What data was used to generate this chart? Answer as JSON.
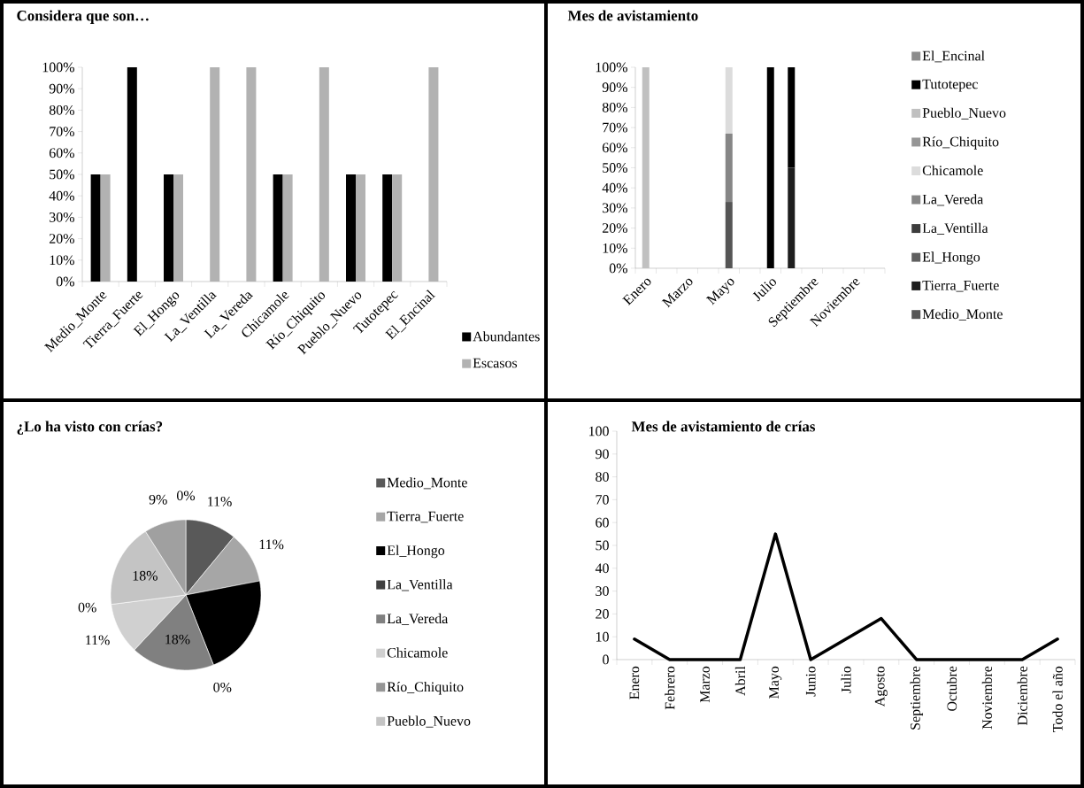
{
  "chart_data": [
    {
      "type": "bar",
      "title": "Considera que son…",
      "categories": [
        "Medio_Monte",
        "Tierra_Fuerte",
        "El_Hongo",
        "La_Ventilla",
        "La_Vereda",
        "Chicamole",
        "Río_Chiquito",
        "Pueblo_Nuevo",
        "Tutotepec",
        "El_Encinal"
      ],
      "series": [
        {
          "name": "Abundantes",
          "color": "#000000",
          "values": [
            50,
            100,
            50,
            0,
            0,
            50,
            0,
            50,
            50,
            0
          ]
        },
        {
          "name": "Escasos",
          "color": "#b2b2b2",
          "values": [
            50,
            0,
            50,
            100,
            100,
            50,
            100,
            50,
            50,
            100
          ]
        }
      ],
      "ylim": [
        0,
        100
      ],
      "yticks": [
        {
          "value": 0,
          "label": "0%"
        },
        {
          "value": 10,
          "label": "10%"
        },
        {
          "value": 20,
          "label": "20%"
        },
        {
          "value": 30,
          "label": "30%"
        },
        {
          "value": 40,
          "label": "40%"
        },
        {
          "value": 50,
          "label": "50%"
        },
        {
          "value": 60,
          "label": "60%"
        },
        {
          "value": 70,
          "label": "70%"
        },
        {
          "value": 80,
          "label": "80%"
        },
        {
          "value": 90,
          "label": "90%"
        },
        {
          "value": 100,
          "label": "100%"
        }
      ],
      "legend": "bottom right"
    },
    {
      "type": "bar",
      "title": "Mes de avistamiento",
      "stacked": true,
      "categories": [
        "Enero",
        null,
        "Marzo",
        null,
        "Mayo",
        null,
        "Julio",
        null,
        "Septiembre",
        null,
        "Noviembre",
        null
      ],
      "series": [
        {
          "name": "Medio_Monte",
          "color": "#555555",
          "values": [
            0,
            0,
            0,
            0,
            33,
            0,
            0,
            0,
            0,
            0,
            0,
            0
          ]
        },
        {
          "name": "Tierra_Fuerte",
          "color": "#1e1e1e",
          "values": [
            0,
            0,
            0,
            0,
            0,
            0,
            0,
            50,
            0,
            0,
            0,
            0
          ]
        },
        {
          "name": "El_Hongo",
          "color": "#5f5f5f",
          "values": [
            0,
            0,
            0,
            0,
            0,
            0,
            0,
            0,
            0,
            0,
            0,
            0
          ]
        },
        {
          "name": "La_Ventilla",
          "color": "#3c3c3c",
          "values": [
            0,
            0,
            0,
            0,
            0,
            0,
            0,
            0,
            0,
            0,
            0,
            0
          ]
        },
        {
          "name": "La_Vereda",
          "color": "#868686",
          "values": [
            0,
            0,
            0,
            0,
            34,
            0,
            0,
            0,
            0,
            0,
            0,
            0
          ]
        },
        {
          "name": "Chicamole",
          "color": "#dcdcdc",
          "values": [
            0,
            0,
            0,
            0,
            33,
            0,
            0,
            0,
            0,
            0,
            0,
            0
          ]
        },
        {
          "name": "Río_Chiquito",
          "color": "#969696",
          "values": [
            0,
            0,
            0,
            0,
            0,
            0,
            0,
            0,
            0,
            0,
            0,
            0
          ]
        },
        {
          "name": "Pueblo_Nuevo",
          "color": "#c0c0c0",
          "values": [
            100,
            0,
            0,
            0,
            0,
            0,
            0,
            0,
            0,
            0,
            0,
            0
          ]
        },
        {
          "name": "Tutotepec",
          "color": "#000000",
          "values": [
            0,
            0,
            0,
            0,
            0,
            0,
            100,
            50,
            0,
            0,
            0,
            0
          ]
        },
        {
          "name": "El_Encinal",
          "color": "#8c8c8c",
          "values": [
            0,
            0,
            0,
            0,
            0,
            0,
            0,
            0,
            0,
            0,
            0,
            0
          ]
        }
      ],
      "ylim": [
        0,
        100
      ],
      "yticks": [
        {
          "value": 0,
          "label": "0%"
        },
        {
          "value": 10,
          "label": "10%"
        },
        {
          "value": 20,
          "label": "20%"
        },
        {
          "value": 30,
          "label": "30%"
        },
        {
          "value": 40,
          "label": "40%"
        },
        {
          "value": 50,
          "label": "50%"
        },
        {
          "value": 60,
          "label": "60%"
        },
        {
          "value": 70,
          "label": "70%"
        },
        {
          "value": 80,
          "label": "80%"
        },
        {
          "value": 90,
          "label": "90%"
        },
        {
          "value": 100,
          "label": "100%"
        }
      ],
      "legend": "right"
    },
    {
      "type": "pie",
      "title": "¿Lo ha visto con crías?",
      "categories": [
        "Medio_Monte",
        "Tierra_Fuerte",
        "El_Hongo",
        "La_Ventilla",
        "La_Vereda",
        "Chicamole",
        "Río_Chiquito",
        "Pueblo_Nuevo",
        null,
        null
      ],
      "values": [
        11,
        11,
        22,
        0,
        18,
        11,
        0,
        18,
        9,
        0
      ],
      "colors": [
        "#595959",
        "#a6a6a6",
        "#000000",
        "#404040",
        "#808080",
        "#d0d0d0",
        "#969696",
        "#c4c4c4",
        "#a0a0a0",
        "#707070"
      ],
      "value_labels": [
        "11%",
        "11%",
        null,
        "0%",
        "18%",
        "11%",
        "0%",
        "18%",
        "9%",
        "0%"
      ],
      "legend": "right"
    },
    {
      "type": "line",
      "title": "Mes de avistamiento de crías",
      "categories": [
        "Enero",
        "Febrero",
        "Marzo",
        "Abril",
        "Mayo",
        "Junio",
        "Julio",
        "Agosto",
        "Septiembre",
        "Octubre",
        "Noviembre",
        "Diciembre",
        "Todo el año"
      ],
      "series": [
        {
          "color": "#000000",
          "values": [
            9,
            0,
            0,
            0,
            55,
            0,
            9,
            18,
            0,
            0,
            0,
            0,
            9
          ]
        }
      ],
      "ylim": [
        0,
        100
      ],
      "yticks": [
        0,
        10,
        20,
        30,
        40,
        50,
        60,
        70,
        80,
        90,
        100
      ]
    }
  ]
}
